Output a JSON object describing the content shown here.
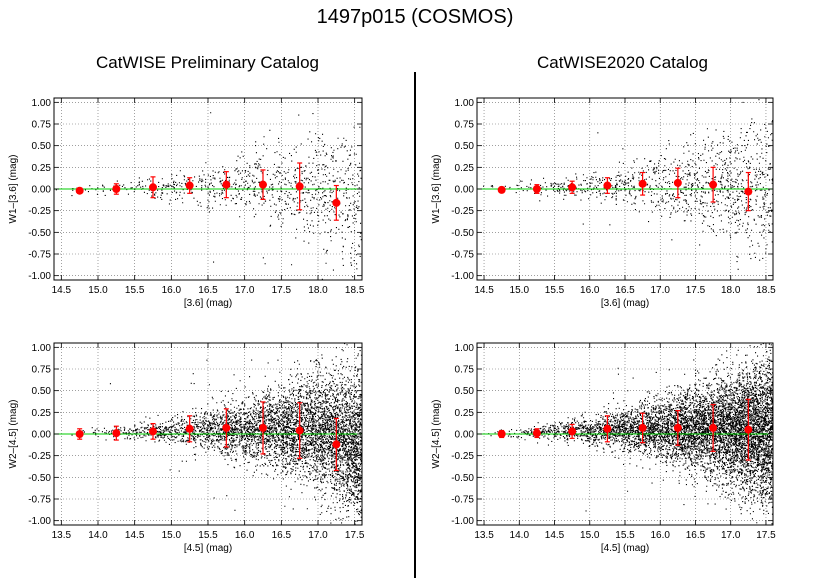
{
  "title": "1497p015 (COSMOS)",
  "columns": [
    "CatWISE Preliminary Catalog",
    "CatWISE2020 Catalog"
  ],
  "colors": {
    "points": "#000000",
    "mean": "#ff0000",
    "zero_line": "#00cc00",
    "grid": "#666666"
  },
  "chart_data": [
    {
      "type": "scatter",
      "column": "CatWISE Preliminary Catalog",
      "xlabel": "[3.6] (mag)",
      "ylabel": "W1–[3.6] (mag)",
      "xlim": [
        14.4,
        18.6
      ],
      "ylim": [
        -1.05,
        1.05
      ],
      "xticks": [
        "14.5",
        "15.0",
        "15.5",
        "16.0",
        "16.5",
        "17.0",
        "17.5",
        "18.0",
        "18.5"
      ],
      "yticks": [
        "1.00",
        "0.75",
        "0.50",
        "0.25",
        "0.00",
        "-0.25",
        "-0.50",
        "-0.75",
        "-1.00"
      ],
      "grid": true,
      "zero_line": 0.0,
      "binned": {
        "x": [
          14.75,
          15.25,
          15.75,
          16.25,
          16.75,
          17.25,
          17.75,
          18.25
        ],
        "mean": [
          -0.02,
          0.0,
          0.02,
          0.04,
          0.05,
          0.05,
          0.03,
          -0.16
        ],
        "err": [
          0.03,
          0.06,
          0.12,
          0.09,
          0.15,
          0.17,
          0.27,
          0.2
        ]
      },
      "scatter": {
        "n": 900,
        "x_start": 14.4,
        "x_end": 18.6,
        "density_growth": 2.2,
        "mean_peak": 0.05,
        "mean_drop": -0.2
      }
    },
    {
      "type": "scatter",
      "column": "CatWISE2020 Catalog",
      "xlabel": "[3.6] (mag)",
      "ylabel": "W1–[3.6] (mag)",
      "xlim": [
        14.4,
        18.6
      ],
      "ylim": [
        -1.05,
        1.05
      ],
      "xticks": [
        "14.5",
        "15.0",
        "15.5",
        "16.0",
        "16.5",
        "17.0",
        "17.5",
        "18.0",
        "18.5"
      ],
      "yticks": [
        "1.00",
        "0.75",
        "0.50",
        "0.25",
        "0.00",
        "-0.25",
        "-0.50",
        "-0.75",
        "-1.00"
      ],
      "grid": true,
      "zero_line": 0.0,
      "binned": {
        "x": [
          14.75,
          15.25,
          15.75,
          16.25,
          16.75,
          17.25,
          17.75,
          18.25
        ],
        "mean": [
          -0.01,
          0.0,
          0.02,
          0.04,
          0.06,
          0.07,
          0.05,
          -0.03
        ],
        "err": [
          0.03,
          0.05,
          0.07,
          0.09,
          0.13,
          0.17,
          0.2,
          0.22
        ]
      },
      "scatter": {
        "n": 1100,
        "x_start": 14.4,
        "x_end": 18.6,
        "density_growth": 2.4,
        "mean_peak": 0.06,
        "mean_drop": -0.05
      }
    },
    {
      "type": "scatter",
      "column": "CatWISE Preliminary Catalog",
      "xlabel": "[4.5] (mag)",
      "ylabel": "W2–[4.5] (mag)",
      "xlim": [
        13.4,
        17.6
      ],
      "ylim": [
        -1.05,
        1.05
      ],
      "xticks": [
        "13.5",
        "14.0",
        "14.5",
        "15.0",
        "15.5",
        "16.0",
        "16.5",
        "17.0",
        "17.5"
      ],
      "yticks": [
        "1.00",
        "0.75",
        "0.50",
        "0.25",
        "0.00",
        "-0.25",
        "-0.50",
        "-0.75",
        "-1.00"
      ],
      "grid": true,
      "zero_line": 0.0,
      "binned": {
        "x": [
          13.75,
          14.25,
          14.75,
          15.25,
          15.75,
          16.25,
          16.75,
          17.25
        ],
        "mean": [
          0.0,
          0.01,
          0.03,
          0.06,
          0.07,
          0.07,
          0.04,
          -0.12
        ],
        "err": [
          0.06,
          0.08,
          0.09,
          0.15,
          0.22,
          0.3,
          0.32,
          0.3
        ]
      },
      "scatter": {
        "n": 5200,
        "x_start": 13.4,
        "x_end": 17.6,
        "density_growth": 3.2,
        "mean_peak": 0.06,
        "mean_drop": -0.15
      }
    },
    {
      "type": "scatter",
      "column": "CatWISE2020 Catalog",
      "xlabel": "[4.5] (mag)",
      "ylabel": "W2–[4.5] (mag)",
      "xlim": [
        13.4,
        17.6
      ],
      "ylim": [
        -1.05,
        1.05
      ],
      "xticks": [
        "13.5",
        "14.0",
        "14.5",
        "15.0",
        "15.5",
        "16.0",
        "16.5",
        "17.0",
        "17.5"
      ],
      "yticks": [
        "1.00",
        "0.75",
        "0.50",
        "0.25",
        "0.00",
        "-0.25",
        "-0.50",
        "-0.75",
        "-1.00"
      ],
      "grid": true,
      "zero_line": 0.0,
      "binned": {
        "x": [
          13.75,
          14.25,
          14.75,
          15.25,
          15.75,
          16.25,
          16.75,
          17.25
        ],
        "mean": [
          0.0,
          0.01,
          0.03,
          0.06,
          0.07,
          0.07,
          0.07,
          0.05
        ],
        "err": [
          0.04,
          0.05,
          0.08,
          0.15,
          0.17,
          0.2,
          0.27,
          0.35
        ]
      },
      "scatter": {
        "n": 7000,
        "x_start": 13.4,
        "x_end": 17.6,
        "density_growth": 3.0,
        "mean_peak": 0.07,
        "mean_drop": 0.03
      }
    }
  ]
}
